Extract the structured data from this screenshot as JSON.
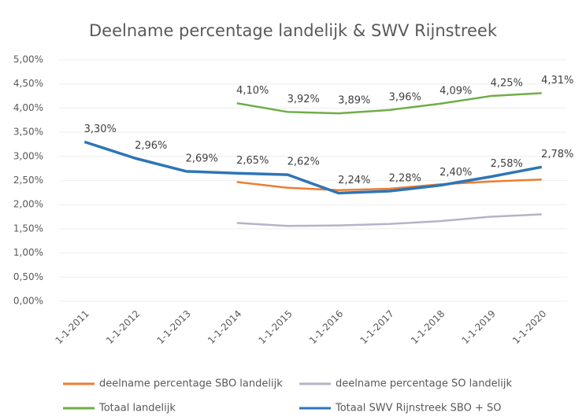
{
  "chart_data": {
    "type": "line",
    "title": "Deelname percentage landelijk & SWV Rijnstreek",
    "categories": [
      "1-1-2011",
      "1-1-2012",
      "1-1-2013",
      "1-1-2014",
      "1-1-2015",
      "1-1-2016",
      "1-1-2017",
      "1-1-2018",
      "1-1-2019",
      "1-1-2020"
    ],
    "ylim": [
      0,
      5
    ],
    "yticks": [
      {
        "value": 0,
        "label": "0,00%"
      },
      {
        "value": 0.5,
        "label": "0,50%"
      },
      {
        "value": 1,
        "label": "1,00%"
      },
      {
        "value": 1.5,
        "label": "1,50%"
      },
      {
        "value": 2,
        "label": "2,00%"
      },
      {
        "value": 2.5,
        "label": "2,50%"
      },
      {
        "value": 3,
        "label": "3,00%"
      },
      {
        "value": 3.5,
        "label": "3,50%"
      },
      {
        "value": 4,
        "label": "4,00%"
      },
      {
        "value": 4.5,
        "label": "4,50%"
      },
      {
        "value": 5,
        "label": "5,00%"
      }
    ],
    "grid": true,
    "legend": "bottom",
    "series": [
      {
        "name": "deelname percentage SBO landelijk",
        "color": "#ed7d31",
        "values": [
          null,
          null,
          null,
          2.47,
          2.35,
          2.3,
          2.33,
          2.42,
          2.48,
          2.52
        ]
      },
      {
        "name": "deelname percentage SO landelijk",
        "color": "#b4b4c8",
        "values": [
          null,
          null,
          null,
          1.62,
          1.56,
          1.57,
          1.6,
          1.66,
          1.75,
          1.8
        ]
      },
      {
        "name": "Totaal landelijk",
        "color": "#70ad47",
        "values": [
          null,
          null,
          null,
          4.1,
          3.92,
          3.89,
          3.96,
          4.09,
          4.25,
          4.31
        ],
        "value_labels": [
          null,
          null,
          null,
          "4,10%",
          "3,92%",
          "3,89%",
          "3,96%",
          "4,09%",
          "4,25%",
          "4,31%"
        ]
      },
      {
        "name": "Totaal SWV Rijnstreek SBO + SO",
        "color": "#2e75b6",
        "values": [
          3.3,
          2.96,
          2.69,
          2.65,
          2.62,
          2.24,
          2.28,
          2.4,
          2.58,
          2.78
        ],
        "value_labels": [
          "3,30%",
          "2,96%",
          "2,69%",
          "2,65%",
          "2,62%",
          "2,24%",
          "2,28%",
          "2,40%",
          "2,58%",
          "2,78%"
        ]
      }
    ]
  }
}
